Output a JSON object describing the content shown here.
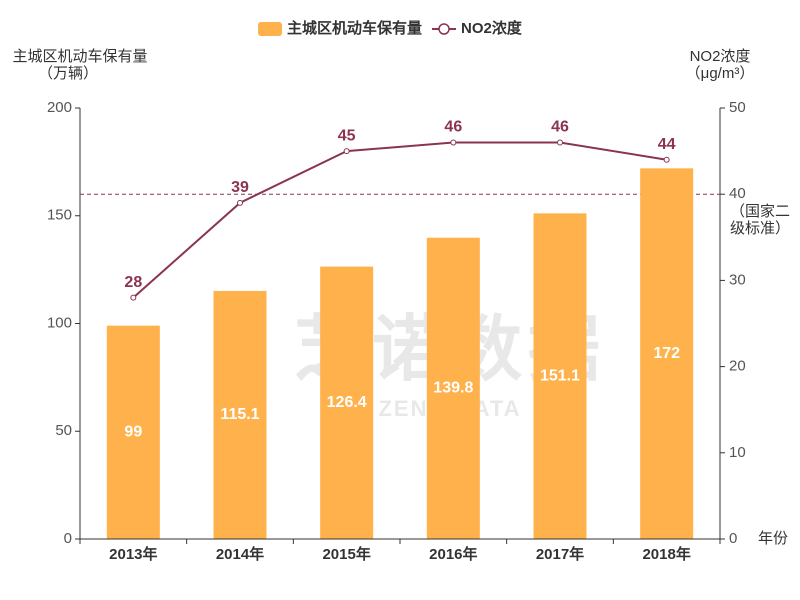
{
  "chart_data": {
    "type": "bar",
    "categories": [
      "2013年",
      "2014年",
      "2015年",
      "2016年",
      "2017年",
      "2018年"
    ],
    "series": [
      {
        "name": "主城区机动车保有量",
        "type": "bar",
        "color": "#ffb24c",
        "values": [
          99,
          115.1,
          126.4,
          139.8,
          151.1,
          172
        ]
      },
      {
        "name": "NO2浓度",
        "type": "line",
        "axis": "y2",
        "color": "#8b3352",
        "values": [
          28,
          39,
          45,
          46,
          46,
          44
        ]
      }
    ],
    "ylabel": [
      "主城区机动车保有量",
      "（万辆）"
    ],
    "y2label": [
      "NO2浓度",
      "（μg/m³）"
    ],
    "xlabel": "年份",
    "ylim": [
      0,
      200
    ],
    "yticks": [
      0,
      50,
      100,
      150,
      200
    ],
    "y2lim": [
      0,
      50
    ],
    "y2ticks": [
      0,
      10,
      20,
      30,
      40,
      50
    ],
    "reference_line": {
      "value": 40,
      "axis": "y2",
      "label": [
        "（国家二",
        "级标准）"
      ]
    },
    "watermark": [
      "芝诺数据",
      "ZENO DATA"
    ],
    "legend": "top"
  }
}
